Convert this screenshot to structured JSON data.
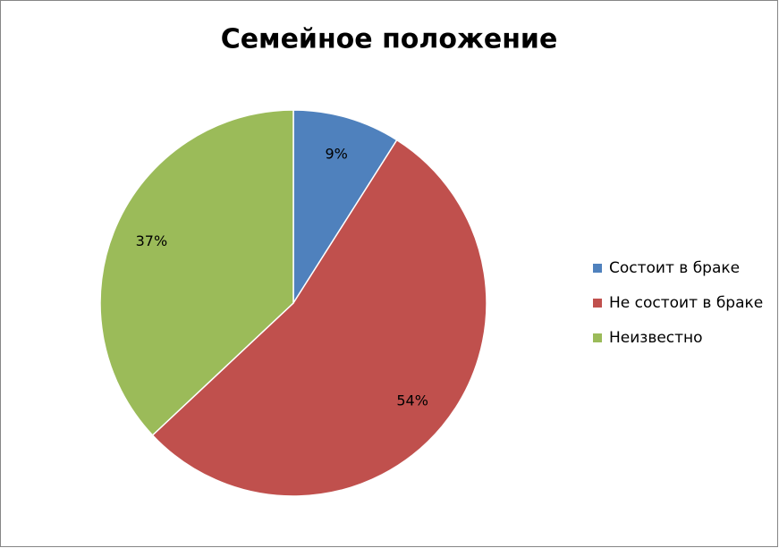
{
  "chart_data": {
    "type": "pie",
    "title": "Семейное положение",
    "categories": [
      "Состоит в браке",
      "Не состоит в браке",
      "Неизвестно"
    ],
    "values": [
      9,
      54,
      37
    ],
    "value_labels": [
      "9%",
      "54%",
      "37%"
    ],
    "colors": [
      "#4f81bd",
      "#c0504d",
      "#9bbb59"
    ],
    "legend": "right"
  }
}
